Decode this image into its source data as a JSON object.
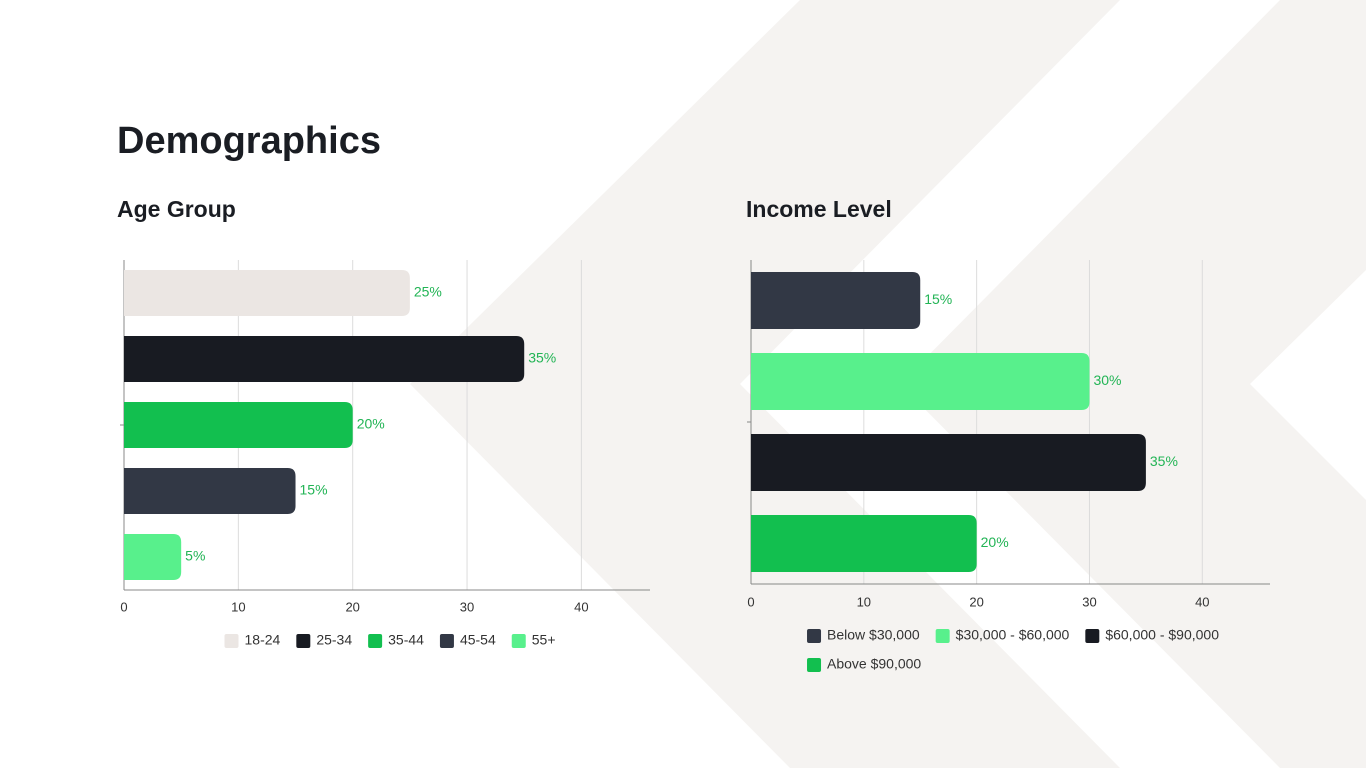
{
  "title": "Demographics",
  "chart_data": [
    {
      "type": "bar",
      "orientation": "horizontal",
      "title": "Age Group",
      "categories": [
        "18-24",
        "25-34",
        "35-44",
        "45-54",
        "55+"
      ],
      "values": [
        25,
        35,
        20,
        15,
        5
      ],
      "value_labels": [
        "25%",
        "35%",
        "20%",
        "15%",
        "5%"
      ],
      "colors": [
        "#ebe6e3",
        "#181b22",
        "#12bf4f",
        "#323845",
        "#58f08c"
      ],
      "xlim": [
        0,
        46
      ],
      "xticks": [
        0,
        10,
        20,
        30,
        40
      ],
      "grid": true,
      "legend": "bottom"
    },
    {
      "type": "bar",
      "orientation": "horizontal",
      "title": "Income Level",
      "categories": [
        "Below $30,000",
        "$30,000 - $60,000",
        "$60,000 - $90,000",
        "Above $90,000"
      ],
      "values": [
        15,
        30,
        35,
        20
      ],
      "value_labels": [
        "15%",
        "30%",
        "35%",
        "20%"
      ],
      "colors": [
        "#323845",
        "#58f08c",
        "#181b22",
        "#12bf4f"
      ],
      "xlim": [
        0,
        46
      ],
      "xticks": [
        0,
        10,
        20,
        30,
        40
      ],
      "grid": true,
      "legend": "bottom"
    }
  ]
}
